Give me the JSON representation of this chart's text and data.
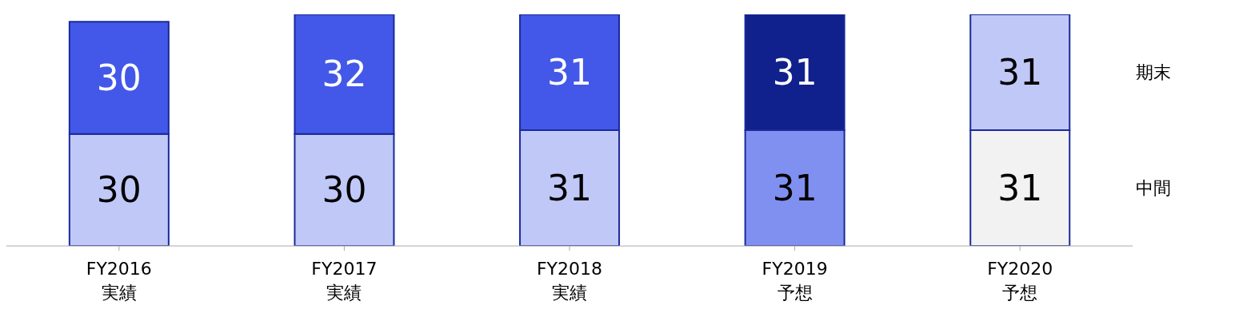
{
  "chart_data": {
    "type": "bar",
    "stacked": true,
    "categories": [
      "FY2016\n実績",
      "FY2017\n実績",
      "FY2018\n実績",
      "FY2019\n予想",
      "FY2020\n予想"
    ],
    "series": [
      {
        "name": "中間",
        "colors": [
          "#c0c8f8",
          "#c0c8f8",
          "#c0c8f8",
          "#8090f0",
          "#f2f2f2"
        ],
        "values": [
          30,
          30,
          31,
          31,
          31
        ]
      },
      {
        "name": "期末",
        "colors": [
          "#4358e8",
          "#4358e8",
          "#4358e8",
          "#10208c",
          "#c0c8f8"
        ],
        "values": [
          30,
          32,
          31,
          31,
          31
        ]
      }
    ],
    "data_labels": true,
    "tick_labels": "x"
  }
}
